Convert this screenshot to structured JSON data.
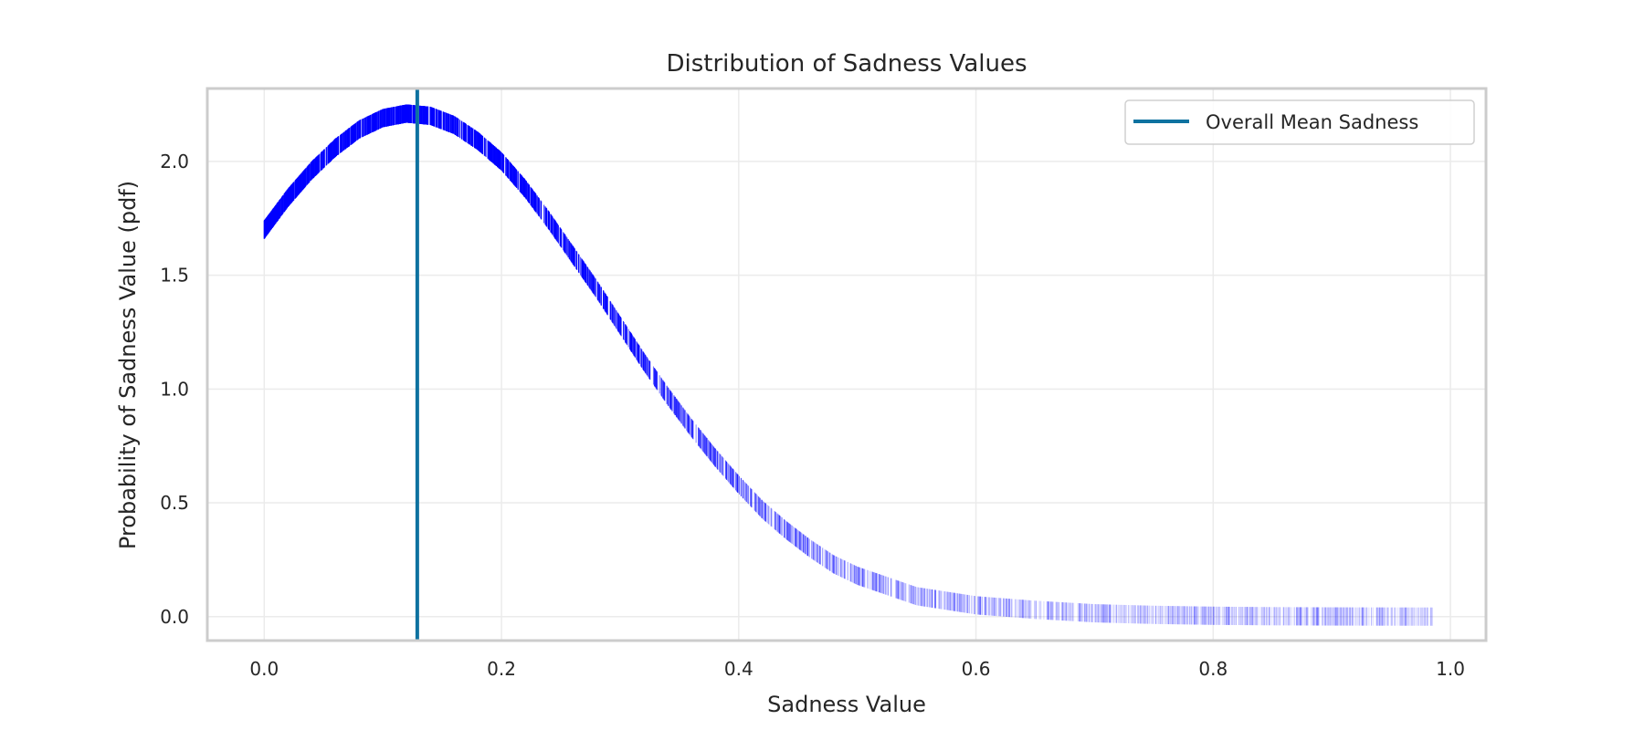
{
  "chart_data": {
    "type": "line",
    "title": "Distribution of Sadness Values",
    "xlabel": "Sadness Value",
    "ylabel": "Probability of Sadness Value (pdf)",
    "xlim": [
      -0.048,
      1.03
    ],
    "ylim": [
      -0.105,
      2.32
    ],
    "xticks": [
      0.0,
      0.2,
      0.4,
      0.6,
      0.8,
      1.0
    ],
    "xtick_labels": [
      "0.0",
      "0.2",
      "0.4",
      "0.6",
      "0.8",
      "1.0"
    ],
    "yticks": [
      0.0,
      0.5,
      1.0,
      1.5,
      2.0
    ],
    "ytick_labels": [
      "0.0",
      "0.5",
      "1.0",
      "1.5",
      "2.0"
    ],
    "grid": true,
    "legend_position": "top-right",
    "series": [
      {
        "color": "#0000ff",
        "style": "vertical-tick-markers",
        "x": [
          0.0,
          0.02,
          0.04,
          0.06,
          0.08,
          0.1,
          0.12,
          0.14,
          0.16,
          0.18,
          0.2,
          0.22,
          0.24,
          0.26,
          0.28,
          0.3,
          0.32,
          0.34,
          0.36,
          0.38,
          0.4,
          0.42,
          0.44,
          0.46,
          0.48,
          0.5,
          0.55,
          0.6,
          0.65,
          0.7,
          0.75,
          0.8,
          0.85,
          0.9,
          0.95,
          1.0
        ],
        "y": [
          1.7,
          1.84,
          1.96,
          2.06,
          2.14,
          2.19,
          2.21,
          2.2,
          2.16,
          2.09,
          2.0,
          1.88,
          1.74,
          1.59,
          1.44,
          1.28,
          1.12,
          0.97,
          0.83,
          0.7,
          0.58,
          0.47,
          0.38,
          0.3,
          0.23,
          0.18,
          0.09,
          0.05,
          0.03,
          0.015,
          0.008,
          0.004,
          0.002,
          0.001,
          0.0005,
          0.0002
        ]
      },
      {
        "name": "Overall Mean Sadness",
        "color": "#0e72a0",
        "type": "vline",
        "x": 0.129
      }
    ]
  }
}
